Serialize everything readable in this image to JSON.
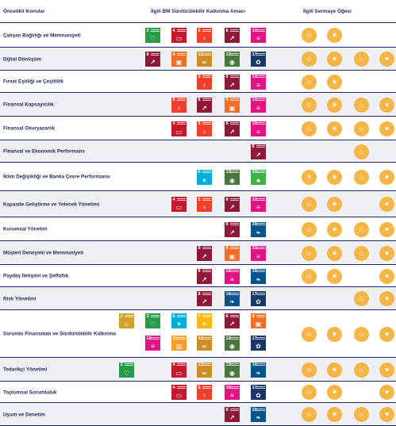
{
  "headers": {
    "topics": "Öncelikli Konular",
    "sdg": "İlgili BM Sürdürülebilir Kalkınma Amacı",
    "capital": "İlgili Sermaye Öğesi"
  },
  "sdg_colors": {
    "2": "#d3a029",
    "3": "#279b48",
    "4": "#c5192d",
    "5": "#ef402b",
    "6": "#00aed9",
    "7": "#fdb713",
    "8": "#8f1838",
    "9": "#f36d25",
    "10": "#e11484",
    "11": "#f99d26",
    "12": "#cf8d2a",
    "13": "#48773e",
    "15": "#3eb049",
    "16": "#02558b",
    "17": "#183668"
  },
  "sdg_icons": {
    "2": "food-icon",
    "3": "heartbeat-icon",
    "4": "book-icon",
    "5": "gender-icon",
    "6": "water-drop-icon",
    "7": "sun-power-icon",
    "8": "growth-chart-icon",
    "9": "cubes-icon",
    "10": "equality-icon",
    "11": "city-icon",
    "12": "infinity-icon",
    "13": "eye-globe-icon",
    "15": "tree-bird-icon",
    "16": "dove-icon",
    "17": "flower-icon"
  },
  "capital_icons": [
    "human-capital-icon",
    "intellectual-capital-icon",
    "financial-capital-icon",
    "social-capital-icon",
    "natural-capital-icon"
  ],
  "rows": [
    {
      "label": "Çalışan Bağlılığı ve Memnuniyeti",
      "sdgs": [
        "3",
        "4",
        "5",
        "8",
        "10"
      ],
      "capitals": [
        "human",
        "intellectual"
      ]
    },
    {
      "label": "Dijital Dönüşüm",
      "sdgs": [
        "8",
        "9",
        "12",
        "13",
        "17"
      ],
      "capitals": [
        "human",
        "intellectual",
        "financial",
        "social"
      ]
    },
    {
      "label": "Fırsat Eşitliği ve Çeşitlilik",
      "sdgs": [
        "5",
        "8",
        "10"
      ],
      "capitals": [
        "human",
        "intellectual"
      ]
    },
    {
      "label": "Finansal Kapsayıcılık",
      "sdgs": [
        "5",
        "8",
        "9",
        "10"
      ],
      "capitals": [
        "human",
        "intellectual",
        "financial",
        "social"
      ]
    },
    {
      "label": "Finansal Okuryazarlık",
      "sdgs": [
        "4",
        "5",
        "8",
        "10"
      ],
      "capitals": [
        "human",
        "intellectual",
        "financial",
        "social"
      ]
    },
    {
      "label": "Finansal ve Ekonomik Performans",
      "sdgs": [
        "8"
      ],
      "capitals": [
        "financial"
      ]
    },
    {
      "label": "İklim Değişikliği ve Banka Çevre Performansı",
      "sdgs": [
        "6",
        "13",
        "15"
      ],
      "capitals": [
        "natural",
        "intellectual",
        "financial",
        "social"
      ]
    },
    {
      "label": "Kapasite Geliştirme ve Yetenek Yönetimi",
      "sdgs": [
        "4",
        "5",
        "8",
        "10"
      ],
      "capitals": [
        "human",
        "intellectual",
        "social"
      ]
    },
    {
      "label": "Kurumsal Yönetim",
      "sdgs": [
        "8",
        "16"
      ],
      "capitals": [
        "human",
        "intellectual",
        "financial",
        "social"
      ]
    },
    {
      "label": "Müşteri Deneyimi ve Memnuniyeti",
      "sdgs": [
        "8",
        "9",
        "10"
      ],
      "capitals": [
        "human",
        "intellectual",
        "financial",
        "social"
      ]
    },
    {
      "label": "Paydaş İletişimi ve Şeffaflık",
      "sdgs": [
        "8",
        "10",
        "16"
      ],
      "capitals": [
        "human",
        "intellectual",
        "social"
      ]
    },
    {
      "label": "Risk Yönetimi",
      "sdgs": [
        "8",
        "16",
        "17"
      ],
      "capitals": [
        "financial",
        "social"
      ]
    },
    {
      "label": "Sorumlu Finansman ve Sürdürülebilir Kalkınma",
      "sdgs": [
        "2",
        "3",
        "5",
        "6",
        "7",
        "8",
        "9",
        "10",
        "11",
        "12",
        "13",
        "17"
      ],
      "capitals": [
        "human",
        "intellectual",
        "financial",
        "social"
      ]
    },
    {
      "label": "Tedarikçi Yönetimi",
      "sdgs": [
        "3",
        "4",
        "8",
        "12",
        "13",
        "16"
      ],
      "capitals": [
        "human",
        "intellectual",
        "financial",
        "social"
      ]
    },
    {
      "label": "Toplumsal Sorumluluk",
      "sdgs": [
        "4",
        "5",
        "10",
        "17"
      ],
      "capitals": [
        "human",
        "intellectual",
        "social"
      ]
    },
    {
      "label": "Uyum ve Denetim",
      "sdgs": [
        "8",
        "16"
      ],
      "capitals": [
        "human",
        "intellectual",
        "financial",
        "social"
      ]
    }
  ]
}
